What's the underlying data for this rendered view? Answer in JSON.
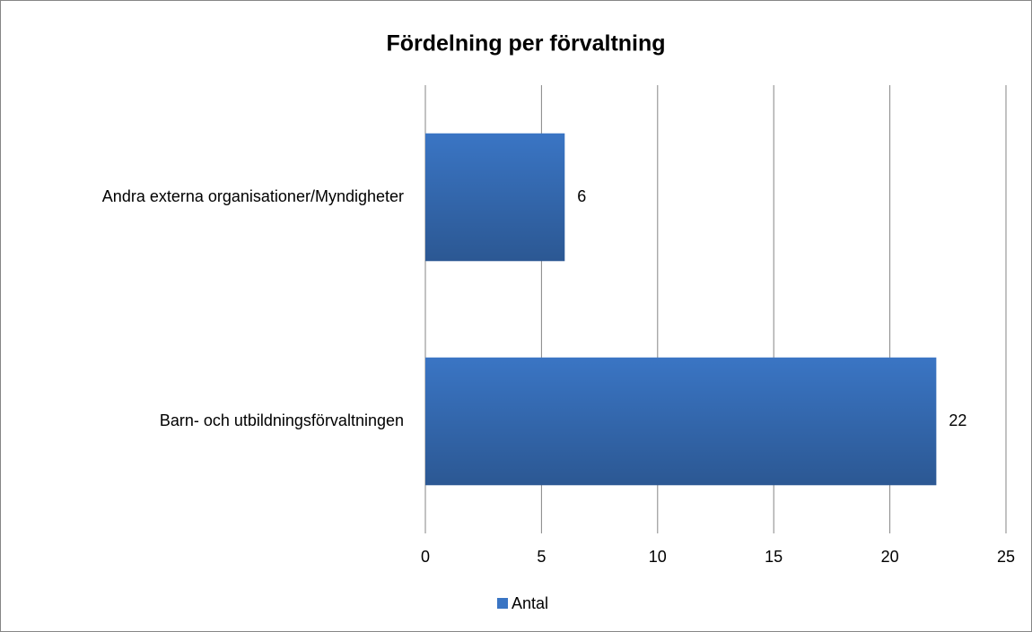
{
  "chart_data": {
    "type": "bar",
    "orientation": "horizontal",
    "title": "Fördelning per förvaltning",
    "categories": [
      "Andra externa organisationer/Myndigheter",
      "Barn- och utbildningsförvaltningen"
    ],
    "series": [
      {
        "name": "Antal",
        "color": "#3a75c4",
        "values": [
          6,
          22
        ]
      }
    ],
    "xlim": [
      0,
      25
    ],
    "xticks": [
      0,
      5,
      10,
      15,
      20,
      25
    ],
    "grid": true,
    "legend": "bottom"
  }
}
